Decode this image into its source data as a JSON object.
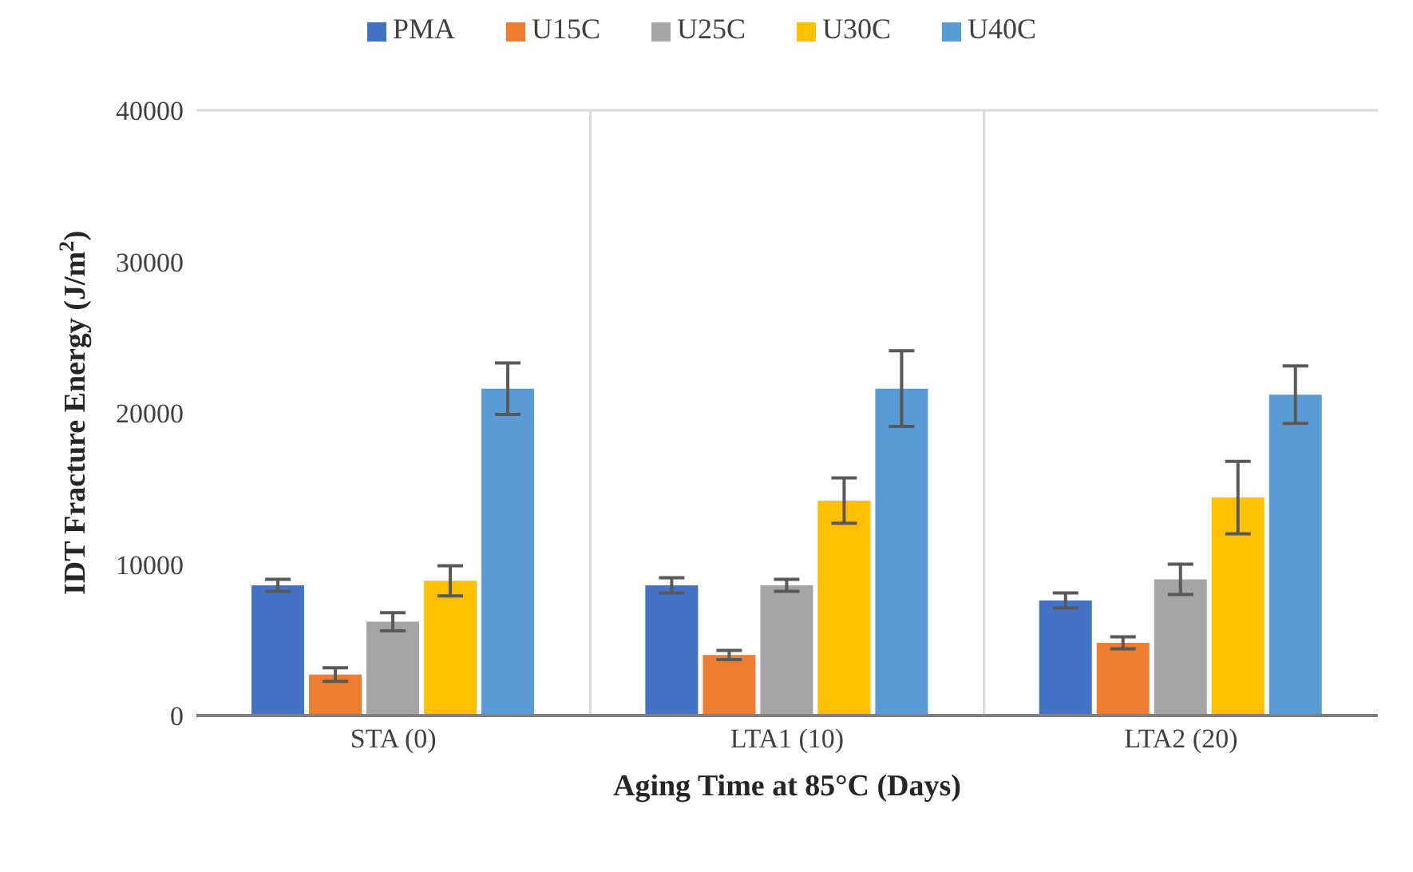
{
  "chart_data": {
    "type": "bar",
    "xlabel": "Aging Time at 85°C (Days)",
    "ylabel": "IDT Fracture Energy (J/m$^{2}$)",
    "categories": [
      "STA (0)",
      "LTA1 (10)",
      "LTA2 (20)"
    ],
    "series": [
      {
        "name": "PMA",
        "color": "#4472c4",
        "values": [
          8600,
          8600,
          7600
        ],
        "errors": [
          400,
          500,
          500
        ]
      },
      {
        "name": "U15C",
        "color": "#ed7d31",
        "values": [
          2700,
          4000,
          4800
        ],
        "errors": [
          450,
          300,
          400
        ]
      },
      {
        "name": "U25C",
        "color": "#a5a5a5",
        "values": [
          6200,
          8600,
          9000
        ],
        "errors": [
          600,
          400,
          1000
        ]
      },
      {
        "name": "U30C",
        "color": "#ffc000",
        "values": [
          8900,
          14200,
          14400
        ],
        "errors": [
          1000,
          1500,
          2400
        ]
      },
      {
        "name": "U40C",
        "color": "#5b9bd5",
        "values": [
          21600,
          21600,
          21200
        ],
        "errors": [
          1700,
          2500,
          1900
        ]
      }
    ],
    "ylim": [
      0,
      40000
    ],
    "yticks": [
      0,
      10000,
      20000,
      30000,
      40000
    ],
    "grid": true,
    "legend": "top"
  }
}
